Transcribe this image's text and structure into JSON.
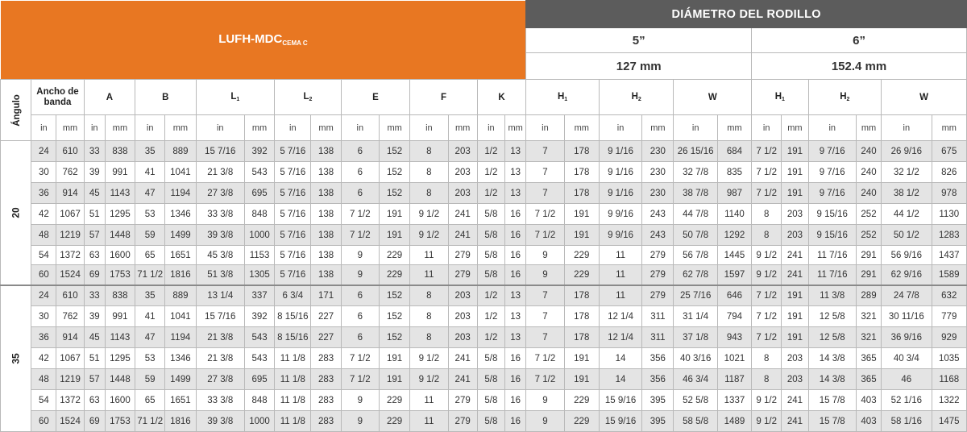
{
  "banner": {
    "model": "LUFH-MDC",
    "model_sub": "CEMA C",
    "diameter_title": "DIÁMETRO DEL RODILLO",
    "diam5_in": "5”",
    "diam5_mm": "127 mm",
    "diam6_in": "6”",
    "diam6_mm": "152.4 mm"
  },
  "columns": {
    "angle": "Ángulo",
    "belt_width": "Ancho de banda",
    "A": "A",
    "B": "B",
    "L1": "L",
    "L1_sub": "1",
    "L2": "L",
    "L2_sub": "2",
    "E": "E",
    "F": "F",
    "K": "K",
    "H1": "H",
    "H1_sub": "1",
    "H2": "H",
    "H2_sub": "2",
    "W": "W",
    "unit_in": "in",
    "unit_mm": "mm"
  },
  "groups": [
    {
      "angle": "20",
      "rows": [
        [
          "24",
          "610",
          "33",
          "838",
          "35",
          "889",
          "15 7/16",
          "392",
          "5 7/16",
          "138",
          "6",
          "152",
          "8",
          "203",
          "1/2",
          "13",
          "7",
          "178",
          "9 1/16",
          "230",
          "26 15/16",
          "684",
          "7 1/2",
          "191",
          "9 7/16",
          "240",
          "26 9/16",
          "675"
        ],
        [
          "30",
          "762",
          "39",
          "991",
          "41",
          "1041",
          "21 3/8",
          "543",
          "5 7/16",
          "138",
          "6",
          "152",
          "8",
          "203",
          "1/2",
          "13",
          "7",
          "178",
          "9 1/16",
          "230",
          "32 7/8",
          "835",
          "7 1/2",
          "191",
          "9 7/16",
          "240",
          "32 1/2",
          "826"
        ],
        [
          "36",
          "914",
          "45",
          "1143",
          "47",
          "1194",
          "27 3/8",
          "695",
          "5 7/16",
          "138",
          "6",
          "152",
          "8",
          "203",
          "1/2",
          "13",
          "7",
          "178",
          "9 1/16",
          "230",
          "38 7/8",
          "987",
          "7 1/2",
          "191",
          "9 7/16",
          "240",
          "38 1/2",
          "978"
        ],
        [
          "42",
          "1067",
          "51",
          "1295",
          "53",
          "1346",
          "33 3/8",
          "848",
          "5 7/16",
          "138",
          "7 1/2",
          "191",
          "9 1/2",
          "241",
          "5/8",
          "16",
          "7 1/2",
          "191",
          "9 9/16",
          "243",
          "44 7/8",
          "1140",
          "8",
          "203",
          "9 15/16",
          "252",
          "44 1/2",
          "1130"
        ],
        [
          "48",
          "1219",
          "57",
          "1448",
          "59",
          "1499",
          "39 3/8",
          "1000",
          "5 7/16",
          "138",
          "7 1/2",
          "191",
          "9 1/2",
          "241",
          "5/8",
          "16",
          "7 1/2",
          "191",
          "9 9/16",
          "243",
          "50 7/8",
          "1292",
          "8",
          "203",
          "9 15/16",
          "252",
          "50 1/2",
          "1283"
        ],
        [
          "54",
          "1372",
          "63",
          "1600",
          "65",
          "1651",
          "45 3/8",
          "1153",
          "5 7/16",
          "138",
          "9",
          "229",
          "11",
          "279",
          "5/8",
          "16",
          "9",
          "229",
          "11",
          "279",
          "56 7/8",
          "1445",
          "9 1/2",
          "241",
          "11 7/16",
          "291",
          "56 9/16",
          "1437"
        ],
        [
          "60",
          "1524",
          "69",
          "1753",
          "71 1/2",
          "1816",
          "51 3/8",
          "1305",
          "5 7/16",
          "138",
          "9",
          "229",
          "11",
          "279",
          "5/8",
          "16",
          "9",
          "229",
          "11",
          "279",
          "62 7/8",
          "1597",
          "9 1/2",
          "241",
          "11 7/16",
          "291",
          "62 9/16",
          "1589"
        ]
      ]
    },
    {
      "angle": "35",
      "rows": [
        [
          "24",
          "610",
          "33",
          "838",
          "35",
          "889",
          "13 1/4",
          "337",
          "6 3/4",
          "171",
          "6",
          "152",
          "8",
          "203",
          "1/2",
          "13",
          "7",
          "178",
          "11",
          "279",
          "25 7/16",
          "646",
          "7 1/2",
          "191",
          "11 3/8",
          "289",
          "24 7/8",
          "632"
        ],
        [
          "30",
          "762",
          "39",
          "991",
          "41",
          "1041",
          "15 7/16",
          "392",
          "8 15/16",
          "227",
          "6",
          "152",
          "8",
          "203",
          "1/2",
          "13",
          "7",
          "178",
          "12 1/4",
          "311",
          "31 1/4",
          "794",
          "7 1/2",
          "191",
          "12 5/8",
          "321",
          "30 11/16",
          "779"
        ],
        [
          "36",
          "914",
          "45",
          "1143",
          "47",
          "1194",
          "21 3/8",
          "543",
          "8 15/16",
          "227",
          "6",
          "152",
          "8",
          "203",
          "1/2",
          "13",
          "7",
          "178",
          "12 1/4",
          "311",
          "37 1/8",
          "943",
          "7 1/2",
          "191",
          "12 5/8",
          "321",
          "36 9/16",
          "929"
        ],
        [
          "42",
          "1067",
          "51",
          "1295",
          "53",
          "1346",
          "21 3/8",
          "543",
          "11 1/8",
          "283",
          "7 1/2",
          "191",
          "9 1/2",
          "241",
          "5/8",
          "16",
          "7 1/2",
          "191",
          "14",
          "356",
          "40 3/16",
          "1021",
          "8",
          "203",
          "14 3/8",
          "365",
          "40 3/4",
          "1035"
        ],
        [
          "48",
          "1219",
          "57",
          "1448",
          "59",
          "1499",
          "27 3/8",
          "695",
          "11 1/8",
          "283",
          "7 1/2",
          "191",
          "9 1/2",
          "241",
          "5/8",
          "16",
          "7 1/2",
          "191",
          "14",
          "356",
          "46 3/4",
          "1187",
          "8",
          "203",
          "14 3/8",
          "365",
          "46",
          "1168"
        ],
        [
          "54",
          "1372",
          "63",
          "1600",
          "65",
          "1651",
          "33 3/8",
          "848",
          "11 1/8",
          "283",
          "9",
          "229",
          "11",
          "279",
          "5/8",
          "16",
          "9",
          "229",
          "15 9/16",
          "395",
          "52 5/8",
          "1337",
          "9 1/2",
          "241",
          "15 7/8",
          "403",
          "52 1/16",
          "1322"
        ],
        [
          "60",
          "1524",
          "69",
          "1753",
          "71 1/2",
          "1816",
          "39 3/8",
          "1000",
          "11 1/8",
          "283",
          "9",
          "229",
          "11",
          "279",
          "5/8",
          "16",
          "9",
          "229",
          "15 9/16",
          "395",
          "58 5/8",
          "1489",
          "9 1/2",
          "241",
          "15 7/8",
          "403",
          "58 1/16",
          "1475"
        ]
      ]
    }
  ]
}
